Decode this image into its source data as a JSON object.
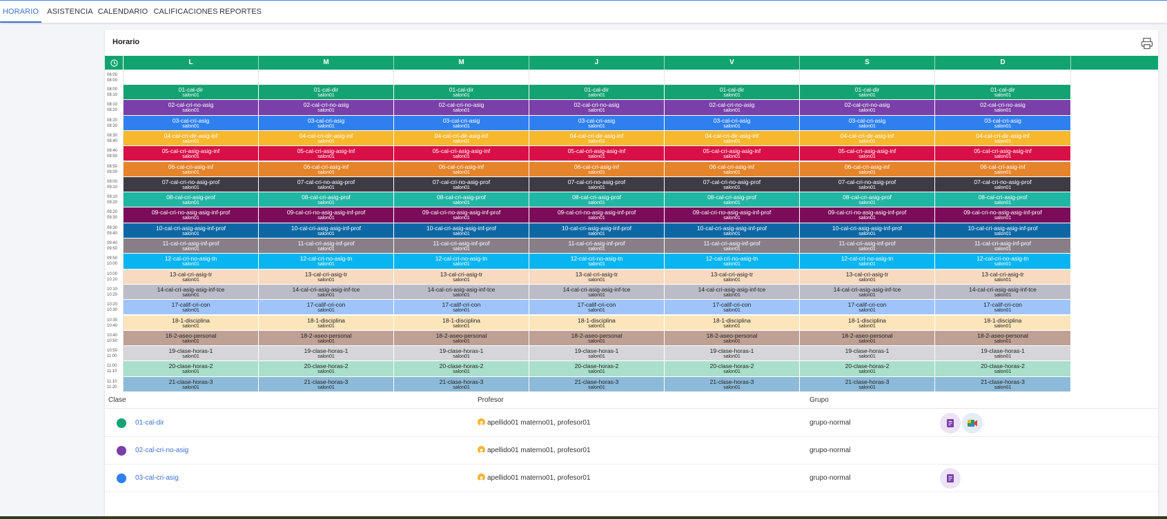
{
  "nav": {
    "tabs": [
      "HORARIO",
      "ASISTENCIA",
      "CALENDARIO",
      "CALIFICACIONES",
      "REPORTES"
    ],
    "active": 0
  },
  "card": {
    "title": "Horario",
    "print_icon": "printer-icon"
  },
  "schedule": {
    "clock_icon": "clock-icon",
    "days": [
      "L",
      "M",
      "M",
      "J",
      "V",
      "S",
      "D"
    ],
    "empty_row": {
      "start": "06:00",
      "end": "08:00"
    },
    "rows": [
      {
        "start": "08:00",
        "end": "08:10",
        "name": "01-cal-dir",
        "room": "salon01",
        "bg": "#13a372",
        "fg": "#ffffff"
      },
      {
        "start": "08:10",
        "end": "08:20",
        "name": "02-cal-cri-no-asig",
        "room": "salon01",
        "bg": "#7a3fa8",
        "fg": "#ffffff"
      },
      {
        "start": "08:20",
        "end": "08:30",
        "name": "03-cal-cri-asig",
        "room": "salon01",
        "bg": "#2f80ef",
        "fg": "#ffffff"
      },
      {
        "start": "08:30",
        "end": "08:40",
        "name": "04-cal-cri-dir-asig-inf",
        "room": "salon01",
        "bg": "#f7b82e",
        "fg": "#ffffff"
      },
      {
        "start": "08:40",
        "end": "08:50",
        "name": "05-cal-cri-asig-asig-inf",
        "room": "salon01",
        "bg": "#d90f47",
        "fg": "#ffffff"
      },
      {
        "start": "08:50",
        "end": "09:00",
        "name": "06-cal-cri-asig-inf",
        "room": "salon01",
        "bg": "#e5842a",
        "fg": "#ffffff"
      },
      {
        "start": "09:00",
        "end": "09:10",
        "name": "07-cal-cri-no-asig-prof",
        "room": "salon01",
        "bg": "#3d3c45",
        "fg": "#ffffff"
      },
      {
        "start": "09:10",
        "end": "09:20",
        "name": "08-cal-cri-asig-prof",
        "room": "salon01",
        "bg": "#20b6a4",
        "fg": "#ffffff"
      },
      {
        "start": "09:20",
        "end": "09:30",
        "name": "09-cal-cri-no-asig-asig-inf-prof",
        "room": "salon01",
        "bg": "#7c0c5a",
        "fg": "#ffffff"
      },
      {
        "start": "09:30",
        "end": "09:40",
        "name": "10-cal-cri-asig-asig-inf-prof",
        "room": "salon01",
        "bg": "#0d67a5",
        "fg": "#ffffff"
      },
      {
        "start": "09:40",
        "end": "09:50",
        "name": "11-cal-cri-asig-inf-prof",
        "room": "salon01",
        "bg": "#877e88",
        "fg": "#ffffff"
      },
      {
        "start": "09:50",
        "end": "10:00",
        "name": "12-cal-cri-no-asig-tn",
        "room": "salon01",
        "bg": "#08b5f0",
        "fg": "#ffffff"
      },
      {
        "start": "10:00",
        "end": "10:10",
        "name": "13-cal-cri-asig-tr",
        "room": "salon01",
        "bg": "#f7dabf",
        "fg": "#222222"
      },
      {
        "start": "10:10",
        "end": "10:20",
        "name": "14-cal-cri-asig-asig-inf-tce",
        "room": "salon01",
        "bg": "#bcbcc8",
        "fg": "#222222"
      },
      {
        "start": "10:20",
        "end": "10:30",
        "name": "17-calif-cri-con",
        "room": "salon01",
        "bg": "#9fc4fa",
        "fg": "#222222"
      },
      {
        "start": "10:30",
        "end": "10:40",
        "name": "18-1-disciplina",
        "room": "salon01",
        "bg": "#fde5bb",
        "fg": "#222222"
      },
      {
        "start": "10:40",
        "end": "10:50",
        "name": "18-2-aseo-personal",
        "room": "salon01",
        "bg": "#bfa095",
        "fg": "#222222"
      },
      {
        "start": "10:50",
        "end": "11:00",
        "name": "19-clase-horas-1",
        "room": "salon01",
        "bg": "#d6d5d9",
        "fg": "#222222"
      },
      {
        "start": "11:00",
        "end": "11:10",
        "name": "20-clase-horas-2",
        "room": "salon01",
        "bg": "#a9dfcb",
        "fg": "#222222"
      },
      {
        "start": "11:10",
        "end": "11:20",
        "name": "21-clase-horas-3",
        "room": "salon01",
        "bg": "#8dbad8",
        "fg": "#222222"
      }
    ],
    "variants": {
      "1": {
        "3": {
          "bg": "#e02a55"
        }
      },
      "13": {
        "2": {
          "name": "14-cal-cri-asig-asig-inf-tce"
        }
      }
    }
  },
  "classes": {
    "headers": {
      "clase": "Clase",
      "profesor": "Profesor",
      "grupo": "Grupo"
    },
    "items": [
      {
        "name": "01-cal-dir",
        "color": "#13a372",
        "teacher": "apellido01 materno01, profesor01",
        "group": "grupo-normal",
        "actions": [
          "classroom-icon",
          "meet-icon"
        ]
      },
      {
        "name": "02-cal-cri-no-asig",
        "color": "#7a3fa8",
        "teacher": "apellido01 materno01, profesor01",
        "group": "grupo-normal",
        "actions": []
      },
      {
        "name": "03-cal-cri-asig",
        "color": "#2f80ef",
        "teacher": "apellido01 materno01, profesor01",
        "group": "grupo-normal",
        "actions": [
          "classroom-icon"
        ]
      }
    ]
  }
}
